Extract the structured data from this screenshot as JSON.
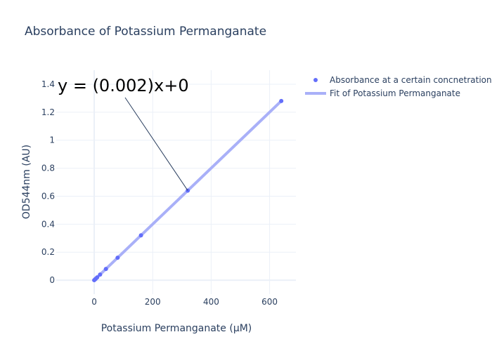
{
  "chart_data": {
    "type": "scatter",
    "title": "Absorbance of Potassium Permanganate",
    "xlabel": "Potassium Permanganate (μM)",
    "ylabel": "OD544nm (AU)",
    "xlim": [
      -130,
      690
    ],
    "ylim": [
      -0.1,
      1.5
    ],
    "x_ticks": [
      0,
      200,
      400,
      600
    ],
    "y_ticks": [
      0,
      0.2,
      0.4,
      0.6,
      0.8,
      1,
      1.2,
      1.4
    ],
    "x_tick_labels": [
      "0",
      "200",
      "400",
      "600"
    ],
    "y_tick_labels": [
      "0",
      "0.2",
      "0.4",
      "0.6",
      "0.8",
      "1",
      "1.2",
      "1.4"
    ],
    "grid": true,
    "legend_position": "top-right",
    "series": [
      {
        "name": "Absorbance at a certain concnetration",
        "mode": "markers",
        "color": "#636efa",
        "x": [
          0,
          2.5,
          5,
          10,
          20,
          40,
          80,
          160,
          320,
          640
        ],
        "y": [
          0,
          0.005,
          0.01,
          0.02,
          0.04,
          0.08,
          0.16,
          0.32,
          0.64,
          1.28
        ]
      },
      {
        "name": "Fit of Potassium Permanganate",
        "mode": "line",
        "color": "#a9b0f8",
        "x": [
          0,
          640
        ],
        "y": [
          0,
          1.28
        ]
      }
    ],
    "annotation": {
      "text": "y = (0.002)x+0",
      "point_x": 320,
      "point_y": 0.64
    }
  }
}
